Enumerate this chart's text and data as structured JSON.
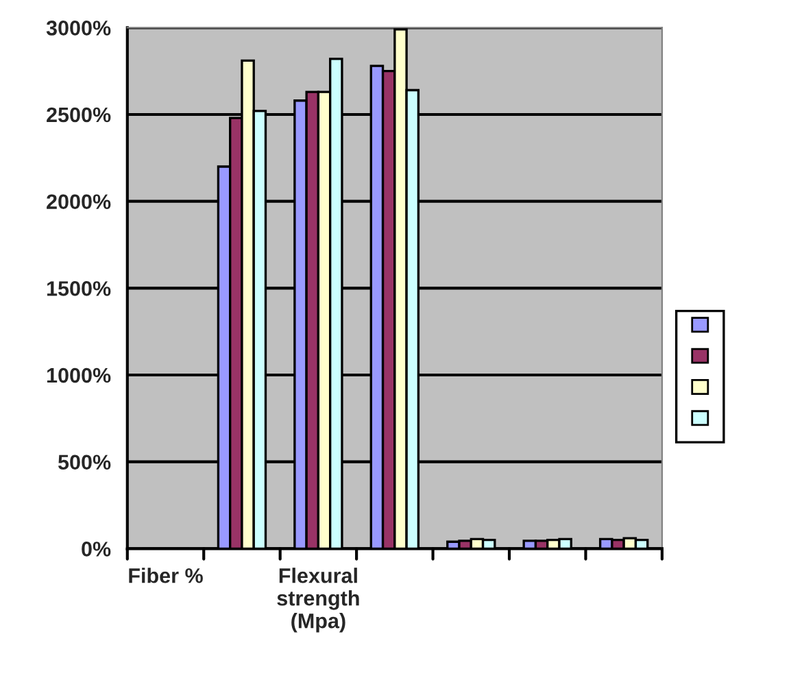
{
  "chart_data": {
    "type": "bar",
    "categories": [
      "Fiber %",
      null,
      "Flexural strength (Mpa)",
      null,
      null,
      null,
      null
    ],
    "series": [
      {
        "color": "#9999ff",
        "values": [
          null,
          2200,
          2580,
          2780,
          40,
          45,
          55
        ]
      },
      {
        "color": "#993366",
        "values": [
          null,
          2480,
          2630,
          2750,
          45,
          45,
          50
        ]
      },
      {
        "color": "#ffffcc",
        "values": [
          null,
          2810,
          2630,
          2990,
          55,
          50,
          60
        ]
      },
      {
        "color": "#ccffff",
        "values": [
          null,
          2520,
          2820,
          2640,
          50,
          55,
          50
        ]
      }
    ],
    "ylim": [
      0,
      3000
    ],
    "yticks": [
      {
        "value": 0,
        "label": "0%"
      },
      {
        "value": 500,
        "label": "500%"
      },
      {
        "value": 1000,
        "label": "1000%"
      },
      {
        "value": 1500,
        "label": "1500%"
      },
      {
        "value": 2000,
        "label": "2000%"
      },
      {
        "value": 2500,
        "label": "2500%"
      },
      {
        "value": 3000,
        "label": "3000%"
      }
    ],
    "grid": "y"
  }
}
